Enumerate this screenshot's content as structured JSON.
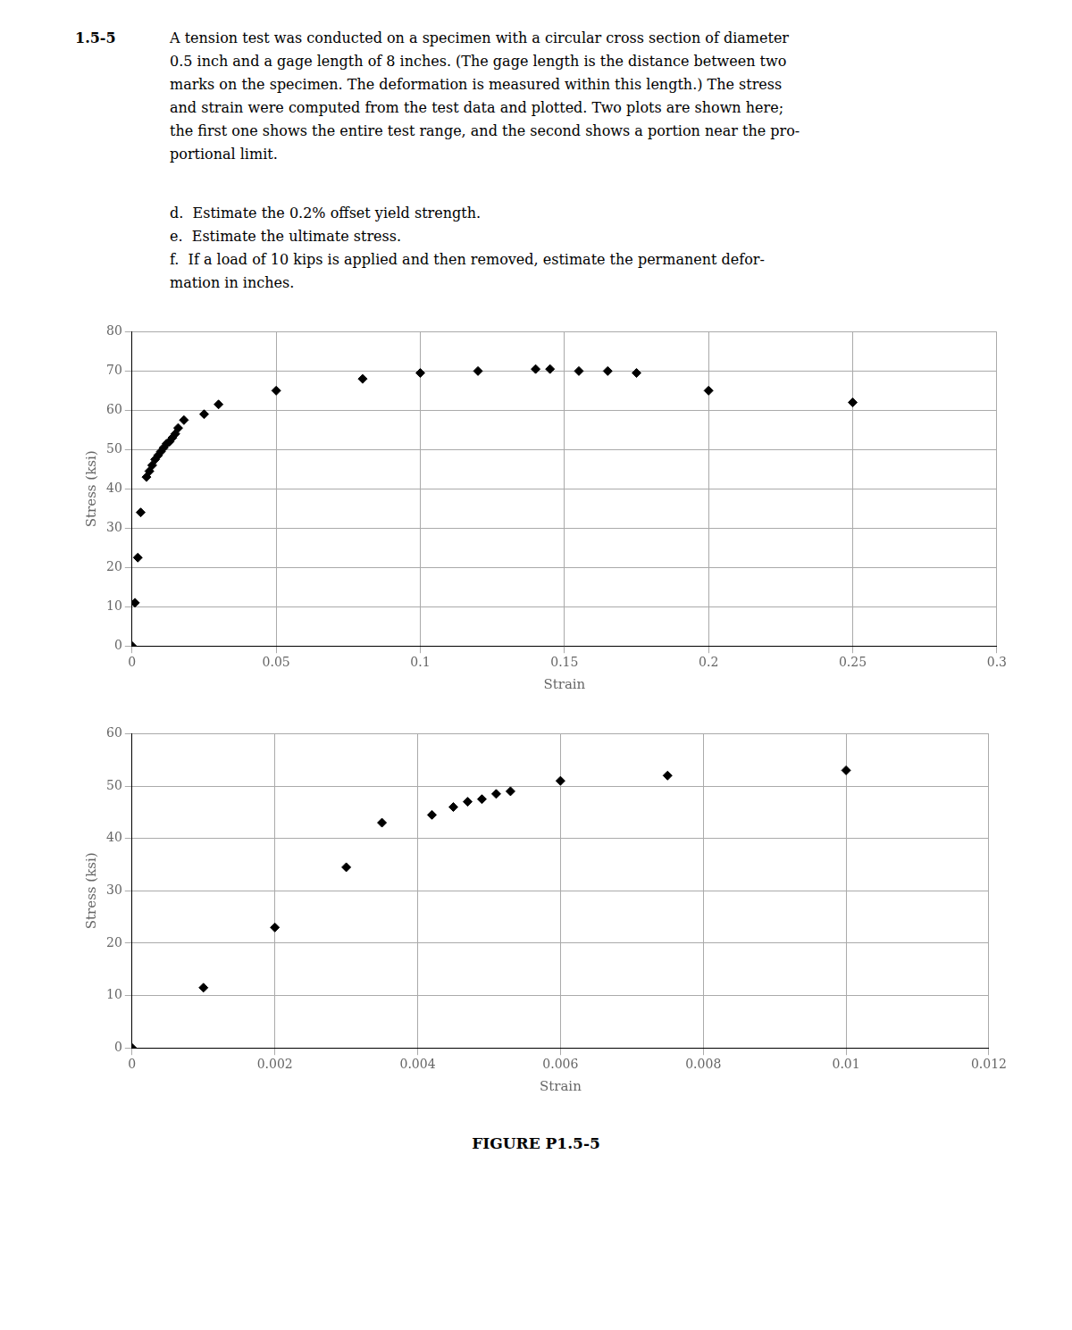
{
  "chart_data": [
    {
      "type": "scatter",
      "annotations": [
        [
          "1.5-5"
        ],
        [
          "A tension test was conducted on a specimen with a circular cross section of diameter",
          "0.5 inch and a gage length of 8 inches. (The gage length is the distance between two",
          "marks on the specimen. The deformation is measured within this length.) The stress",
          "and strain were computed from the test data and plotted. Two plots are shown here;",
          "the first one shows the entire test range, and the second shows a portion near the pro-",
          "portional limit."
        ],
        [
          "d.  Estimate the 0.2% offset yield strength.",
          "e.  Estimate the ultimate stress.",
          "f.  If a load of 10 kips is applied and then removed, estimate the permanent defor-",
          "mation in inches."
        ]
      ],
      "x": [
        0.0,
        0.001,
        0.002,
        0.003,
        0.005,
        0.006,
        0.007,
        0.008,
        0.009,
        0.01,
        0.011,
        0.012,
        0.013,
        0.014,
        0.015,
        0.016,
        0.018,
        0.025,
        0.03,
        0.05,
        0.08,
        0.1,
        0.12,
        0.14,
        0.145,
        0.155,
        0.165,
        0.175,
        0.2,
        0.25
      ],
      "values": [
        0.0,
        11.0,
        22.5,
        34.0,
        43.0,
        44.5,
        46.0,
        47.5,
        48.5,
        49.5,
        50.5,
        51.5,
        52.0,
        53.0,
        54.0,
        55.5,
        57.5,
        59.0,
        61.5,
        65.0,
        68.0,
        69.5,
        70.0,
        70.5,
        70.5,
        70.0,
        70.0,
        69.5,
        65.0,
        62.0
      ],
      "xlim": [
        0,
        0.3
      ],
      "ylim": [
        0,
        80
      ],
      "xticks": [
        0,
        0.05,
        0.1,
        0.15,
        0.2,
        0.25,
        0.3
      ],
      "yticks": [
        0,
        10,
        20,
        30,
        40,
        50,
        60,
        70,
        80
      ],
      "xlabel": "Strain",
      "ylabel": "Stress (ksi)",
      "marker": "diamond",
      "color": "#000000",
      "grid": true
    },
    {
      "type": "scatter",
      "annotations": [
        [
          "FIGURE P1.5-5"
        ]
      ],
      "x": [
        0.0,
        0.001,
        0.002,
        0.003,
        0.0035,
        0.0042,
        0.0045,
        0.0047,
        0.0049,
        0.0051,
        0.0053,
        0.006,
        0.0075,
        0.01
      ],
      "values": [
        0.0,
        11.5,
        23.0,
        34.5,
        43.0,
        44.5,
        46.0,
        47.0,
        47.5,
        48.5,
        49.0,
        51.0,
        52.0,
        53.0
      ],
      "xlim": [
        0,
        0.012
      ],
      "ylim": [
        0,
        60
      ],
      "xticks": [
        0,
        0.002,
        0.004,
        0.006,
        0.008,
        0.01,
        0.012
      ],
      "yticks": [
        0,
        10,
        20,
        30,
        40,
        50,
        60
      ],
      "xlabel": "Strain",
      "ylabel": "Stress (ksi)",
      "marker": "diamond",
      "color": "#000000",
      "grid": true
    }
  ]
}
